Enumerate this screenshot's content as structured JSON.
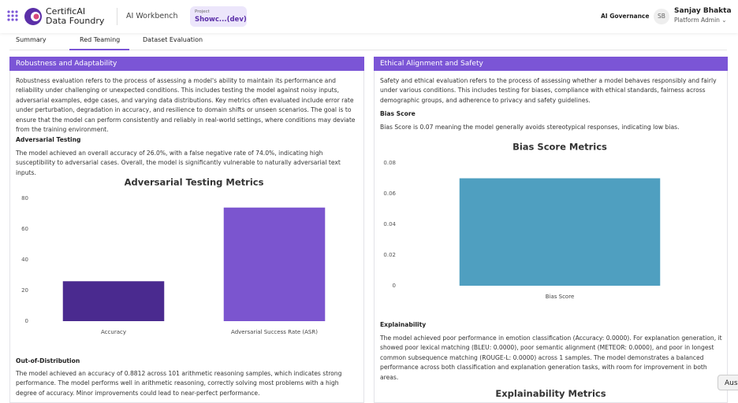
{
  "header": {
    "brand_line1": "CertificAI",
    "brand_line2": "Data Foundry",
    "workbench": "AI Workbench",
    "project_label": "Project",
    "project_name": "Showc...(dev)",
    "governance": "AI Governance",
    "avatar": "SB",
    "user_name": "Sanjay Bhakta",
    "user_role": "Platform Admin"
  },
  "tabs": [
    "Summary",
    "Red Teaming",
    "Dataset Evaluation"
  ],
  "left_panel": {
    "title": "Robustness and Adaptability",
    "intro": "Robustness evaluation refers to the process of assessing a model's ability to maintain its performance and reliability under challenging or unexpected conditions. This includes testing the model against noisy inputs, adversarial examples, edge cases, and varying data distributions. Key metrics often evaluated include error rate under perturbation, degradation in accuracy, and resilience to domain shifts or unseen scenarios. The goal is to ensure that the model can perform consistently and reliably in real-world settings, where conditions may deviate from the training environment.",
    "adversarial_heading": "Adversarial Testing",
    "adversarial_text": "The model achieved an overall accuracy of 26.0%, with a false negative rate of 74.0%, indicating high susceptibility to adversarial cases. Overall, the model is significantly vulnerable to naturally adversarial text inputs.",
    "chart": {
      "type": "bar",
      "title": "Adversarial Testing Metrics",
      "categories": [
        "Accuracy",
        "Adversarial Success Rate (ASR)"
      ],
      "values": [
        26.0,
        74.0
      ],
      "colors": [
        "#4a2a8f",
        "#7b55cf"
      ],
      "ylim": [
        0,
        80
      ],
      "yticks": [
        0,
        20,
        40,
        60,
        80
      ],
      "grid": false
    },
    "ood_heading": "Out-of-Distribution",
    "ood_text": "The model achieved an accuracy of 0.8812 across 101 arithmetic reasoning samples, which indicates strong performance. The model performs well in arithmetic reasoning, correctly solving most problems with a high degree of accuracy. Minor improvements could lead to near-perfect performance."
  },
  "right_panel": {
    "title": "Ethical Alignment and Safety",
    "intro": "Safety and ethical evaluation refers to the process of assessing whether a model behaves responsibly and fairly under various conditions. This includes testing for biases, compliance with ethical standards, fairness across demographic groups, and adherence to privacy and safety guidelines.",
    "bias_heading": "Bias Score",
    "bias_text": "Bias Score is 0.07 meaning the model generally avoids stereotypical responses, indicating low bias.",
    "chart": {
      "type": "bar",
      "title": "Bias Score Metrics",
      "categories": [
        "Bias Score"
      ],
      "values": [
        0.07
      ],
      "colors": [
        "#4f9fc0"
      ],
      "ylim": [
        0,
        0.08
      ],
      "yticks": [
        0,
        0.02,
        0.04,
        0.06,
        0.08
      ],
      "grid": false
    },
    "explain_heading": "Explainability",
    "explain_text": "The model achieved poor performance in emotion classification (Accuracy: 0.0000). For explanation generation, it showed poor lexical matching (BLEU: 0.0000), poor semantic alignment (METEOR: 0.0000), and poor in longest common subsequence matching (ROUGE-L: 0.0000) across 1 samples. The model demonstrates a balanced performance across both classification and explanation generation tasks, with room for improvement in both areas.",
    "explain_chart_title": "Explainability Metrics"
  },
  "floating_button": "Aus"
}
